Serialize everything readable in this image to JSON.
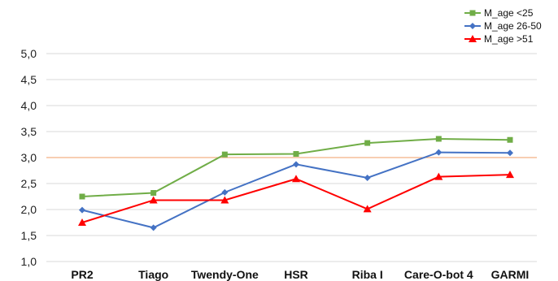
{
  "chart_data": {
    "type": "line",
    "title": "",
    "xlabel": "",
    "ylabel": "",
    "ylim": [
      1.0,
      5.0
    ],
    "yticks": [
      "1,0",
      "1,5",
      "2,0",
      "2,5",
      "3,0",
      "3,5",
      "4,0",
      "4,5",
      "5,0"
    ],
    "ytick_values": [
      1.0,
      1.5,
      2.0,
      2.5,
      3.0,
      3.5,
      4.0,
      4.5,
      5.0
    ],
    "grid": true,
    "legend_position": "top-right",
    "reference_line": {
      "value": 3.0,
      "color": "#f4b183"
    },
    "categories": [
      "PR2",
      "Tiago",
      "Twendy-One",
      "HSR",
      "Riba I",
      "Care-O-bot 4",
      "GARMI"
    ],
    "series": [
      {
        "name": "M_age <25",
        "color": "#70ad47",
        "marker": "square",
        "values": [
          2.25,
          2.32,
          3.06,
          3.07,
          3.28,
          3.36,
          3.34
        ]
      },
      {
        "name": "M_age 26-50",
        "color": "#4472c4",
        "marker": "diamond",
        "values": [
          1.99,
          1.65,
          2.33,
          2.87,
          2.61,
          3.1,
          3.09
        ]
      },
      {
        "name": "M_age >51",
        "color": "#ff0000",
        "marker": "triangle",
        "values": [
          1.75,
          2.18,
          2.18,
          2.59,
          2.01,
          2.63,
          2.67
        ]
      }
    ]
  }
}
